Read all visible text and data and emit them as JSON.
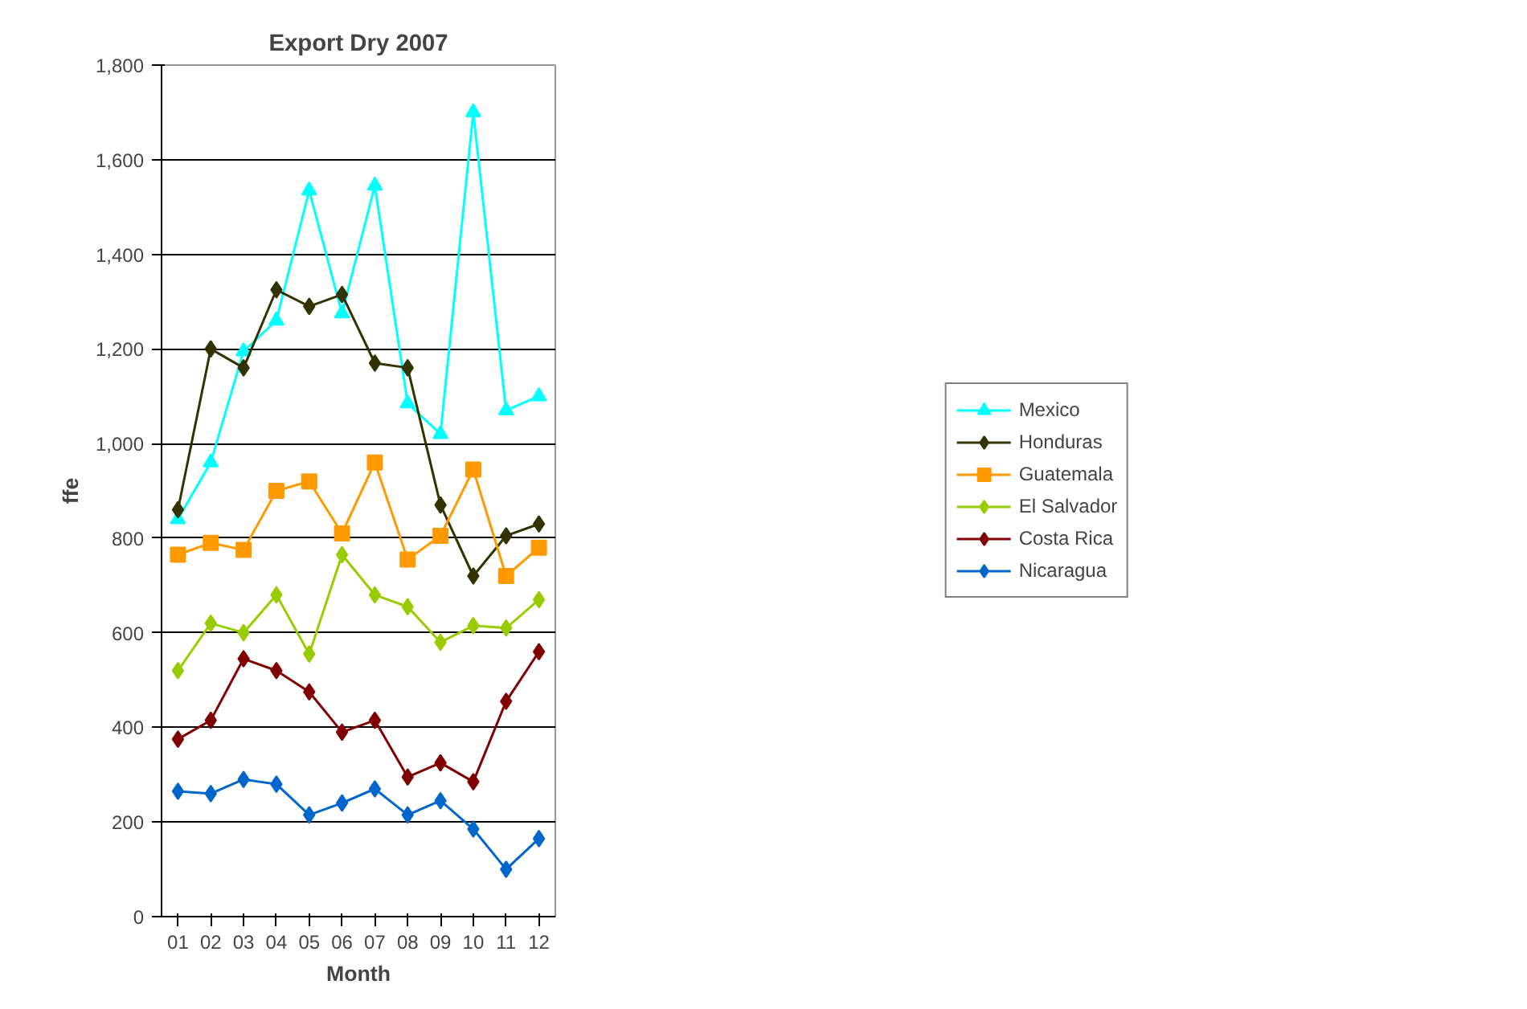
{
  "chart_data": {
    "type": "line",
    "title": "Export Dry 2007",
    "xlabel": "Month",
    "ylabel": "ffe",
    "categories": [
      "01",
      "02",
      "03",
      "04",
      "05",
      "06",
      "07",
      "08",
      "09",
      "10",
      "11",
      "12"
    ],
    "ylim": [
      0,
      1800
    ],
    "yticks": [
      0,
      {
        "value": 200,
        "label": "200"
      },
      {
        "value": 400,
        "label": "400"
      },
      {
        "value": 600,
        "label": "600"
      },
      {
        "value": 800,
        "label": "800"
      },
      {
        "value": 1000,
        "label": "1,000"
      },
      {
        "value": 1200,
        "label": "1,200"
      },
      {
        "value": 1400,
        "label": "1,400"
      },
      {
        "value": 1600,
        "label": "1,600"
      },
      {
        "value": 1800,
        "label": "1,800"
      }
    ],
    "grid": "y",
    "legend": "right",
    "line_style": "solid",
    "series": [
      {
        "name": "Mexico",
        "color": "#00ffff",
        "marker": "triangle",
        "values": [
          840,
          960,
          1195,
          1260,
          1535,
          1275,
          1545,
          1085,
          1020,
          1700,
          1070,
          1100
        ]
      },
      {
        "name": "Honduras",
        "color": "#333300",
        "marker": "diamond",
        "values": [
          860,
          1200,
          1160,
          1325,
          1290,
          1315,
          1170,
          1160,
          870,
          720,
          805,
          830
        ]
      },
      {
        "name": "Guatemala",
        "color": "#ff9900",
        "marker": "square",
        "values": [
          765,
          790,
          775,
          900,
          920,
          810,
          960,
          755,
          805,
          945,
          720,
          780
        ]
      },
      {
        "name": "El Salvador",
        "color": "#99cc00",
        "marker": "diamond",
        "values": [
          520,
          620,
          600,
          680,
          555,
          765,
          680,
          655,
          580,
          615,
          610,
          670
        ]
      },
      {
        "name": "Costa Rica",
        "color": "#800000",
        "marker": "diamond",
        "values": [
          375,
          415,
          545,
          520,
          475,
          390,
          415,
          295,
          325,
          285,
          455,
          560
        ]
      },
      {
        "name": "Nicaragua",
        "color": "#0066cc",
        "marker": "diamond",
        "values": [
          265,
          260,
          290,
          280,
          215,
          240,
          270,
          215,
          245,
          185,
          100,
          165
        ]
      }
    ]
  }
}
